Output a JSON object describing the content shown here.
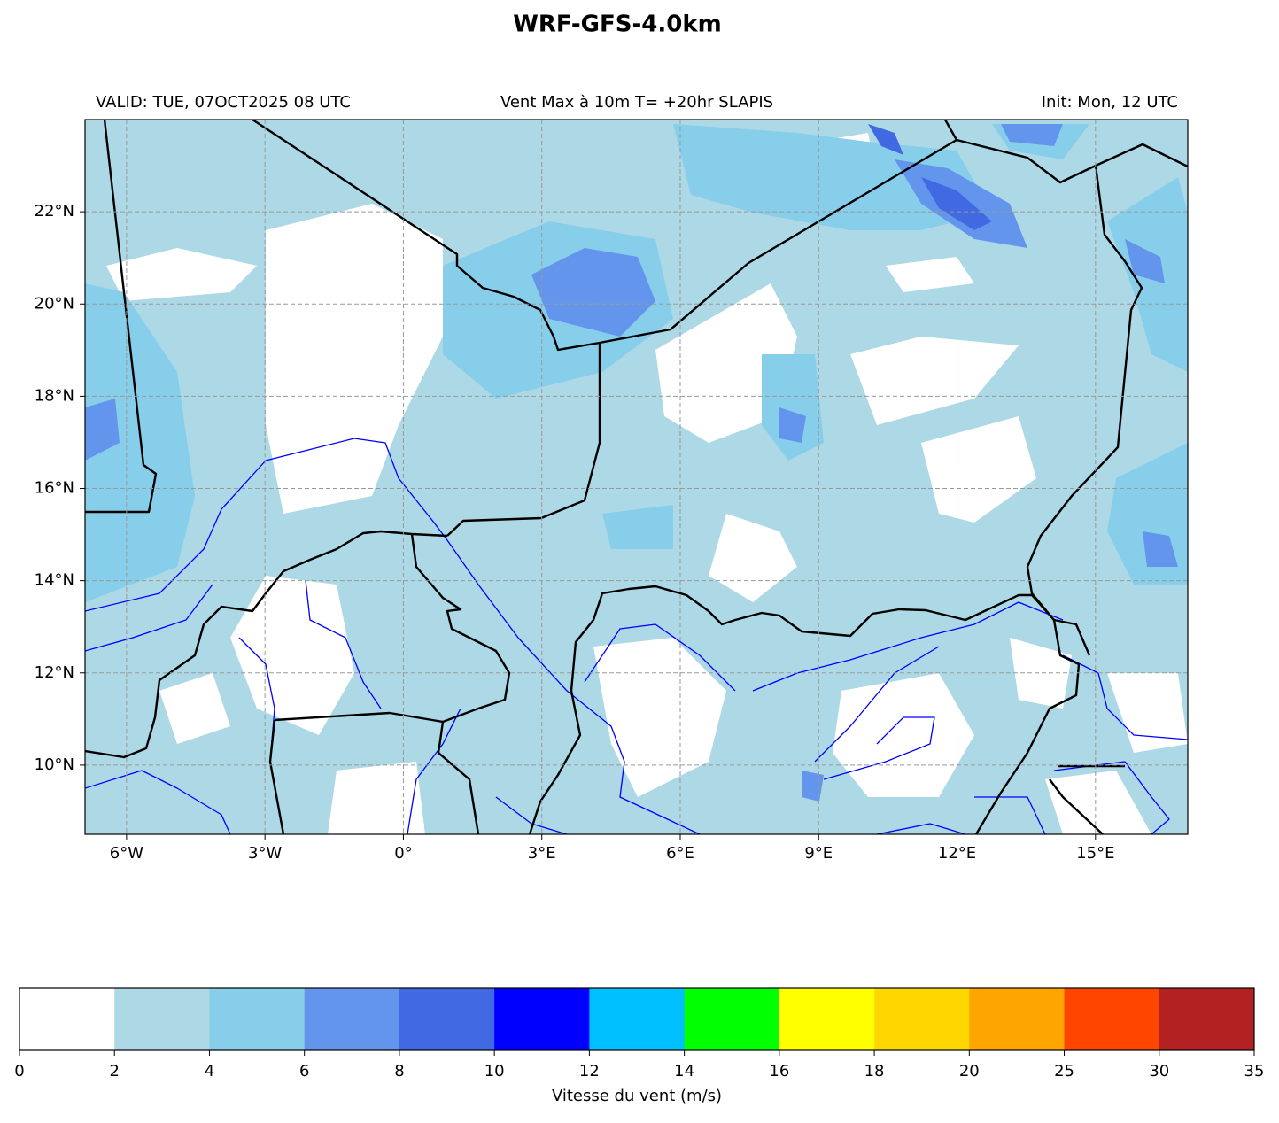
{
  "map": {
    "title": "WRF-GFS-4.0km",
    "subtitle_left": "VALID: TUE, 07OCT2025 08 UTC",
    "subtitle_center": "Vent Max à 10m T= +20hr SLAPIS",
    "subtitle_right": "Init: Mon, 12 UTC",
    "xlim": [
      -6.9,
      17
    ],
    "ylim": [
      8.5,
      24
    ],
    "xticks": [
      {
        "value": -6,
        "label": "6°W"
      },
      {
        "value": -3,
        "label": "3°W"
      },
      {
        "value": 0,
        "label": "0°"
      },
      {
        "value": 3,
        "label": "3°E"
      },
      {
        "value": 6,
        "label": "6°E"
      },
      {
        "value": 9,
        "label": "9°E"
      },
      {
        "value": 12,
        "label": "12°E"
      },
      {
        "value": 15,
        "label": "15°E"
      }
    ],
    "yticks": [
      {
        "value": 10,
        "label": "10°N"
      },
      {
        "value": 12,
        "label": "12°N"
      },
      {
        "value": 14,
        "label": "14°N"
      },
      {
        "value": 16,
        "label": "16°N"
      },
      {
        "value": 18,
        "label": "18°N"
      },
      {
        "value": 20,
        "label": "20°N"
      },
      {
        "value": 22,
        "label": "22°N"
      }
    ],
    "grid": true,
    "colorbar": {
      "label": "Vitesse du vent (m/s)",
      "boundaries": [
        0,
        2,
        4,
        6,
        8,
        10,
        12,
        14,
        16,
        18,
        20,
        25,
        30,
        35
      ],
      "colors": [
        "#ffffff",
        "#add8e6",
        "#87ceeb",
        "#6495ed",
        "#4169e1",
        "#0000ff",
        "#00bfff",
        "#00ff00",
        "#ffff00",
        "#ffd700",
        "#ffa500",
        "#ff4500",
        "#b22222"
      ]
    }
  }
}
